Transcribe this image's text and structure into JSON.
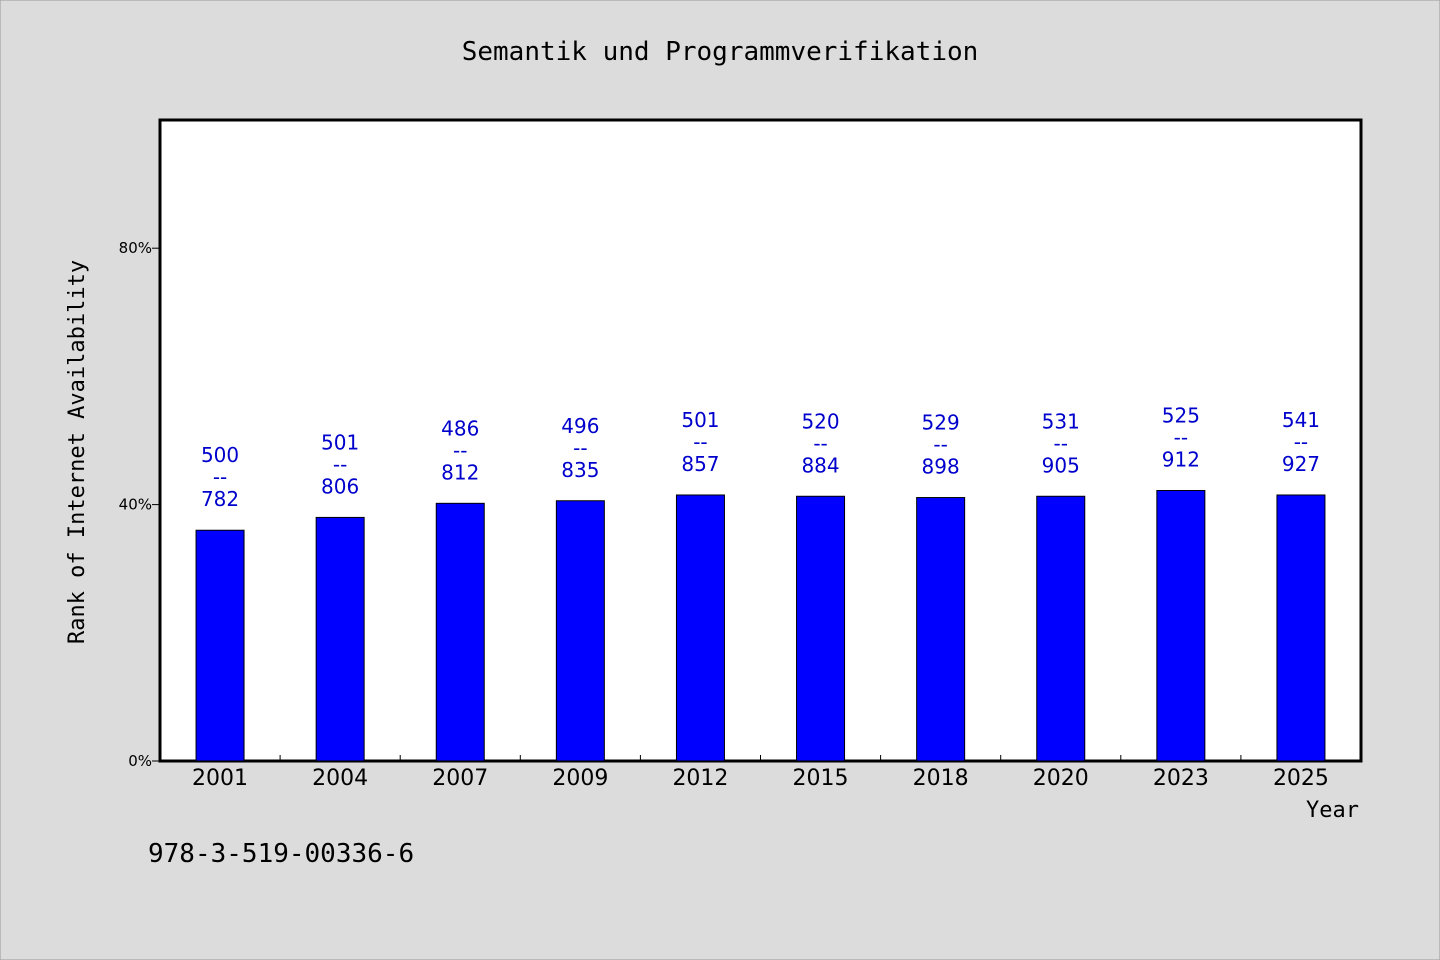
{
  "chart_data": {
    "type": "bar",
    "title": "Semantik und Programmverifikation",
    "xlabel": "Year",
    "ylabel": "Rank of Internet Availability",
    "footer_text": "978-3-519-00336-6",
    "categories": [
      "2001",
      "2004",
      "2007",
      "2009",
      "2012",
      "2015",
      "2018",
      "2020",
      "2023",
      "2025"
    ],
    "values": [
      36.0,
      38.0,
      40.2,
      40.6,
      41.5,
      41.3,
      41.1,
      41.3,
      42.2,
      41.5
    ],
    "label_top": [
      "500",
      "501",
      "486",
      "496",
      "501",
      "520",
      "529",
      "531",
      "525",
      "541"
    ],
    "label_sep": "--",
    "label_bottom": [
      "782",
      "806",
      "812",
      "835",
      "857",
      "884",
      "898",
      "905",
      "912",
      "927"
    ],
    "ylim": [
      0,
      100
    ],
    "yticks": [
      0,
      40,
      80
    ],
    "ytick_labels": [
      "0%",
      "40%",
      "80%"
    ],
    "grid": false,
    "legend": "none",
    "colors": {
      "bar": "#0000ff",
      "data_label": "#0000cc",
      "background": "#dcdcdc",
      "plot_area": "#ffffff"
    }
  }
}
